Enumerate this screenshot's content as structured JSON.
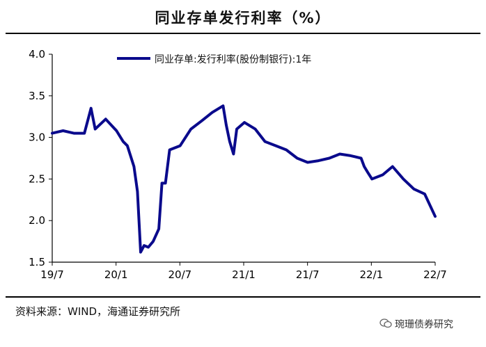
{
  "page_title": "同业存单发行利率（%）",
  "source_note": "资料来源：WIND，海通证券研究所",
  "watermark": "琬珊债券研究",
  "colors": {
    "line": "#0a0a8c",
    "axis": "#000000"
  },
  "chart_data": {
    "type": "line",
    "title": "",
    "xlabel": "",
    "ylabel": "",
    "x_tick_labels": [
      "19/7",
      "20/1",
      "20/7",
      "21/1",
      "21/7",
      "22/1",
      "22/7"
    ],
    "x_range": [
      "2019-07",
      "2022-07"
    ],
    "ylim": [
      1.5,
      4.0
    ],
    "y_ticks": [
      "1.5",
      "2.0",
      "2.5",
      "3.0",
      "3.5",
      "4.0"
    ],
    "grid": false,
    "legend_position": "top",
    "series": [
      {
        "name": "同业存单:发行利率(股份制银行):1年",
        "x": [
          "2019-07",
          "2019-08",
          "2019-09",
          "2019-10",
          "2019-10-20",
          "2019-11",
          "2019-12",
          "2020-01",
          "2020-01-20",
          "2020-02",
          "2020-02-20",
          "2020-03",
          "2020-03-10",
          "2020-03-20",
          "2020-04",
          "2020-04-15",
          "2020-05",
          "2020-05-10",
          "2020-05-20",
          "2020-06",
          "2020-07",
          "2020-08",
          "2020-09",
          "2020-10",
          "2020-11",
          "2020-11-10",
          "2020-11-20",
          "2020-12",
          "2020-12-10",
          "2021-01",
          "2021-02",
          "2021-03",
          "2021-04",
          "2021-05",
          "2021-06",
          "2021-07",
          "2021-08",
          "2021-09",
          "2021-10",
          "2021-11",
          "2021-12",
          "2021-12-10",
          "2021-12-20",
          "2022-01",
          "2022-02",
          "2022-03",
          "2022-04",
          "2022-05",
          "2022-06",
          "2022-07"
        ],
        "y": [
          3.05,
          3.08,
          3.05,
          3.05,
          3.35,
          3.1,
          3.22,
          3.08,
          2.95,
          2.9,
          2.65,
          2.35,
          1.62,
          1.7,
          1.68,
          1.75,
          1.9,
          2.45,
          2.45,
          2.85,
          2.9,
          3.1,
          3.2,
          3.3,
          3.38,
          3.15,
          2.95,
          2.8,
          3.1,
          3.18,
          3.1,
          2.95,
          2.9,
          2.85,
          2.75,
          2.7,
          2.72,
          2.75,
          2.8,
          2.78,
          2.75,
          2.65,
          2.58,
          2.5,
          2.55,
          2.65,
          2.5,
          2.38,
          2.32,
          2.05
        ]
      }
    ]
  }
}
